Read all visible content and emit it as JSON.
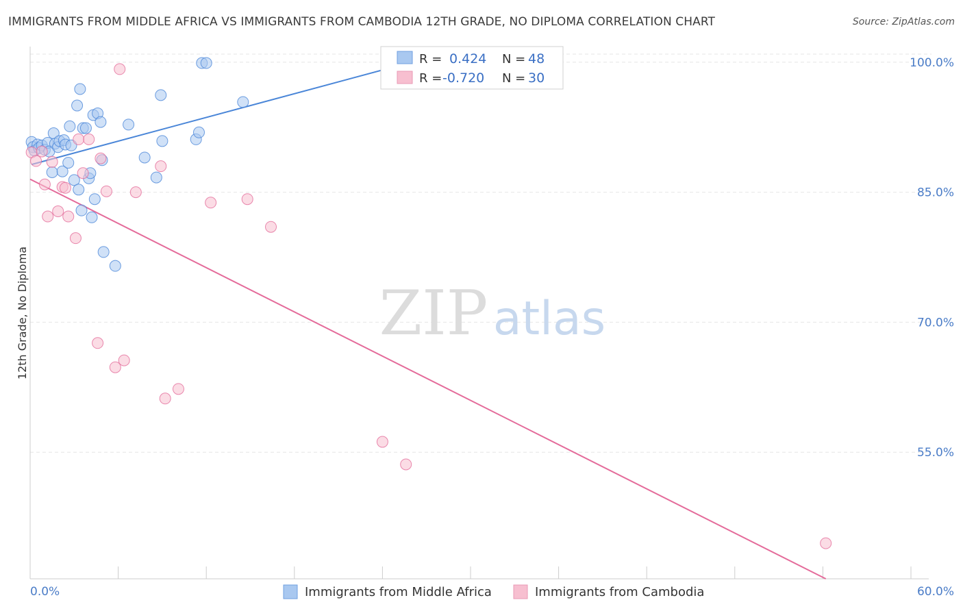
{
  "header": {
    "title": "IMMIGRANTS FROM MIDDLE AFRICA VS IMMIGRANTS FROM CAMBODIA 12TH GRADE, NO DIPLOMA CORRELATION CHART",
    "source": "Source: ZipAtlas.com"
  },
  "watermark": {
    "zip": "ZIP",
    "atlas": "atlas"
  },
  "legend": {
    "rows": [
      {
        "r_label": "R = ",
        "r_value": "0.424",
        "n_label": "N = ",
        "n_value": "48",
        "color": "#a9c8f0"
      },
      {
        "r_label": "R = ",
        "r_value": "-0.720",
        "n_label": "N = ",
        "n_value": "30",
        "color": "#f7bfd0"
      }
    ]
  },
  "chart_data": {
    "type": "scatter",
    "title": "IMMIGRANTS FROM MIDDLE AFRICA VS IMMIGRANTS FROM CAMBODIA 12TH GRADE, NO DIPLOMA CORRELATION CHART",
    "xlabel": "",
    "ylabel": "12th Grade, No Diploma",
    "xlim": [
      0,
      60
    ],
    "ylim": [
      40.4,
      101.8
    ],
    "x_tick_labels": [
      "0.0%",
      "60.0%"
    ],
    "y_ticks": [
      55,
      70,
      85,
      100
    ],
    "y_tick_labels": [
      "55.0%",
      "70.0%",
      "85.0%",
      "100.0%"
    ],
    "grid": true,
    "legend_position": "bottom-center",
    "series": [
      {
        "name": "Immigrants from Middle Africa",
        "color": "#4a86d8",
        "fill": "#a9c8f0",
        "trend": {
          "x": [
            0.1,
            26.2
          ],
          "y": [
            88.2,
            100.1
          ]
        },
        "points": [
          [
            0.1,
            90.8
          ],
          [
            0.2,
            90.2
          ],
          [
            0.3,
            89.8
          ],
          [
            0.5,
            90.5
          ],
          [
            0.6,
            90.1
          ],
          [
            0.8,
            90.4
          ],
          [
            1.0,
            89.9
          ],
          [
            1.2,
            90.7
          ],
          [
            1.3,
            89.7
          ],
          [
            1.5,
            87.3
          ],
          [
            1.6,
            91.8
          ],
          [
            1.7,
            90.6
          ],
          [
            1.9,
            90.2
          ],
          [
            2.0,
            90.9
          ],
          [
            2.2,
            87.4
          ],
          [
            2.3,
            91.0
          ],
          [
            2.4,
            90.5
          ],
          [
            2.6,
            88.4
          ],
          [
            2.7,
            92.6
          ],
          [
            2.8,
            90.4
          ],
          [
            3.0,
            86.4
          ],
          [
            3.2,
            95.0
          ],
          [
            3.3,
            85.3
          ],
          [
            3.4,
            96.9
          ],
          [
            3.5,
            82.9
          ],
          [
            3.6,
            92.4
          ],
          [
            3.8,
            92.4
          ],
          [
            4.0,
            86.6
          ],
          [
            4.1,
            87.2
          ],
          [
            4.2,
            82.1
          ],
          [
            4.3,
            93.9
          ],
          [
            4.4,
            84.2
          ],
          [
            4.6,
            94.1
          ],
          [
            4.8,
            93.1
          ],
          [
            4.9,
            88.7
          ],
          [
            5.0,
            78.1
          ],
          [
            5.8,
            76.5
          ],
          [
            6.7,
            92.8
          ],
          [
            7.8,
            89.0
          ],
          [
            8.6,
            86.7
          ],
          [
            8.9,
            96.2
          ],
          [
            9.0,
            90.9
          ],
          [
            11.3,
            91.1
          ],
          [
            11.5,
            91.9
          ],
          [
            11.7,
            99.9
          ],
          [
            12.0,
            99.9
          ],
          [
            14.5,
            95.4
          ],
          [
            26.2,
            99.9
          ]
        ]
      },
      {
        "name": "Immigrants from Cambodia",
        "color": "#e46b9a",
        "fill": "#f7bfd0",
        "trend": {
          "x": [
            0.0,
            54.2
          ],
          "y": [
            86.5,
            40.4
          ]
        },
        "points": [
          [
            0.1,
            89.6
          ],
          [
            0.4,
            88.6
          ],
          [
            0.8,
            89.7
          ],
          [
            1.0,
            85.9
          ],
          [
            1.2,
            82.2
          ],
          [
            1.5,
            88.5
          ],
          [
            1.9,
            82.8
          ],
          [
            2.2,
            85.6
          ],
          [
            2.4,
            85.5
          ],
          [
            2.6,
            82.2
          ],
          [
            3.1,
            79.7
          ],
          [
            3.3,
            91.1
          ],
          [
            3.6,
            87.2
          ],
          [
            4.0,
            91.1
          ],
          [
            4.6,
            67.6
          ],
          [
            4.8,
            88.9
          ],
          [
            5.2,
            85.1
          ],
          [
            5.8,
            64.8
          ],
          [
            6.1,
            99.2
          ],
          [
            6.4,
            65.6
          ],
          [
            7.2,
            85.0
          ],
          [
            8.9,
            88.0
          ],
          [
            9.2,
            61.2
          ],
          [
            10.1,
            62.3
          ],
          [
            12.3,
            83.8
          ],
          [
            14.8,
            84.2
          ],
          [
            16.4,
            81.0
          ],
          [
            24.0,
            56.2
          ],
          [
            25.6,
            53.6
          ],
          [
            54.2,
            44.5
          ]
        ]
      }
    ]
  }
}
